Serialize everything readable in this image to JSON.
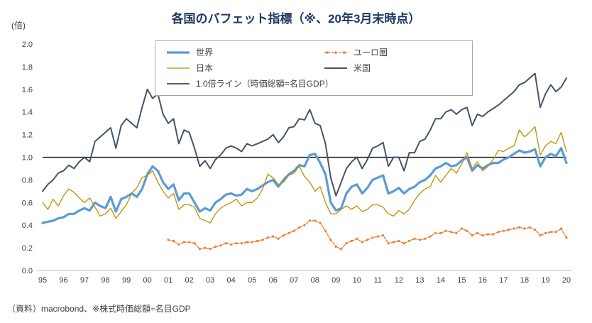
{
  "source_note": "（資料）macrobond、※株式時価総額÷名目GDP",
  "chart_data": {
    "type": "line",
    "title": "各国のバフェット指標（※、20年3月末時点）",
    "y_unit": "(倍)",
    "ylim": [
      0.0,
      2.0
    ],
    "ytick_step": 0.2,
    "x_tick_labels": [
      "95",
      "96",
      "97",
      "98",
      "99",
      "00",
      "01",
      "02",
      "03",
      "04",
      "05",
      "06",
      "07",
      "08",
      "09",
      "10",
      "11",
      "12",
      "13",
      "14",
      "15",
      "16",
      "17",
      "18",
      "19",
      "20"
    ],
    "points_per_year": 4,
    "x_range_note": "quarterly 1995Q1 - 2020Q1",
    "legend_position": "top-inside-box",
    "grid": false,
    "reference_line": {
      "value": 1.0,
      "label": "1.0倍ライン（時価総額=名目GDP）",
      "color": "#000000"
    },
    "series": [
      {
        "name": "世界",
        "color": "#5B9BD5",
        "width": 3.2,
        "dash": "",
        "markers": false,
        "values": [
          0.42,
          0.43,
          0.44,
          0.46,
          0.47,
          0.5,
          0.5,
          0.53,
          0.55,
          0.53,
          0.6,
          0.57,
          0.55,
          0.65,
          0.52,
          0.63,
          0.65,
          0.68,
          0.65,
          0.72,
          0.85,
          0.92,
          0.88,
          0.78,
          0.72,
          0.76,
          0.62,
          0.68,
          0.68,
          0.6,
          0.52,
          0.55,
          0.53,
          0.6,
          0.63,
          0.67,
          0.68,
          0.66,
          0.67,
          0.72,
          0.7,
          0.72,
          0.75,
          0.78,
          0.8,
          0.74,
          0.8,
          0.85,
          0.88,
          0.93,
          0.92,
          1.02,
          1.03,
          0.95,
          0.85,
          0.6,
          0.53,
          0.55,
          0.68,
          0.74,
          0.76,
          0.68,
          0.73,
          0.8,
          0.82,
          0.84,
          0.68,
          0.7,
          0.73,
          0.68,
          0.72,
          0.74,
          0.78,
          0.8,
          0.84,
          0.9,
          0.92,
          0.95,
          0.92,
          0.93,
          0.97,
          1.0,
          0.88,
          0.93,
          0.9,
          0.93,
          0.95,
          0.95,
          0.98,
          1.0,
          1.03,
          1.06,
          1.04,
          1.05,
          1.07,
          0.92,
          1.0,
          1.03,
          1.01,
          1.08,
          0.95
        ]
      },
      {
        "name": "ユーロ圏",
        "color": "#ED7D31",
        "width": 1.4,
        "dash": "3 2",
        "markers": true,
        "values": [
          null,
          null,
          null,
          null,
          null,
          null,
          null,
          null,
          null,
          null,
          null,
          null,
          null,
          null,
          null,
          null,
          null,
          null,
          null,
          null,
          null,
          null,
          null,
          null,
          0.27,
          0.26,
          0.23,
          0.25,
          0.25,
          0.24,
          0.19,
          0.2,
          0.19,
          0.21,
          0.22,
          0.24,
          0.23,
          0.24,
          0.24,
          0.25,
          0.25,
          0.26,
          0.27,
          0.29,
          0.3,
          0.28,
          0.31,
          0.33,
          0.35,
          0.38,
          0.4,
          0.44,
          0.44,
          0.42,
          0.35,
          0.27,
          0.21,
          0.19,
          0.24,
          0.26,
          0.28,
          0.25,
          0.27,
          0.29,
          0.3,
          0.31,
          0.24,
          0.25,
          0.26,
          0.24,
          0.26,
          0.28,
          0.27,
          0.28,
          0.3,
          0.33,
          0.33,
          0.35,
          0.34,
          0.33,
          0.37,
          0.35,
          0.31,
          0.33,
          0.31,
          0.32,
          0.32,
          0.34,
          0.35,
          0.36,
          0.37,
          0.38,
          0.37,
          0.38,
          0.36,
          0.31,
          0.33,
          0.34,
          0.34,
          0.37,
          0.29
        ]
      },
      {
        "name": "日本",
        "color": "#BF8F00",
        "width": 1.3,
        "dash": "",
        "markers": false,
        "values": [
          0.6,
          0.54,
          0.63,
          0.57,
          0.66,
          0.72,
          0.69,
          0.64,
          0.6,
          0.64,
          0.56,
          0.48,
          0.5,
          0.55,
          0.46,
          0.52,
          0.58,
          0.68,
          0.73,
          0.82,
          0.84,
          0.88,
          0.78,
          0.7,
          0.64,
          0.68,
          0.54,
          0.58,
          0.58,
          0.56,
          0.46,
          0.44,
          0.42,
          0.5,
          0.55,
          0.58,
          0.6,
          0.63,
          0.57,
          0.6,
          0.6,
          0.64,
          0.72,
          0.85,
          0.82,
          0.76,
          0.78,
          0.84,
          0.86,
          0.92,
          0.83,
          0.78,
          0.7,
          0.74,
          0.6,
          0.5,
          0.5,
          0.54,
          0.57,
          0.54,
          0.57,
          0.52,
          0.54,
          0.58,
          0.58,
          0.56,
          0.5,
          0.48,
          0.53,
          0.5,
          0.54,
          0.62,
          0.68,
          0.72,
          0.74,
          0.84,
          0.78,
          0.84,
          0.9,
          0.86,
          0.94,
          1.04,
          0.9,
          0.96,
          0.88,
          0.92,
          0.98,
          1.06,
          1.05,
          1.08,
          1.1,
          1.24,
          1.18,
          1.22,
          1.27,
          1.02,
          1.1,
          1.14,
          1.12,
          1.22,
          1.05
        ]
      },
      {
        "name": "米国",
        "color": "#44546A",
        "width": 2.0,
        "dash": "",
        "markers": false,
        "values": [
          0.7,
          0.76,
          0.8,
          0.86,
          0.88,
          0.93,
          0.9,
          0.96,
          1.0,
          0.96,
          1.14,
          1.18,
          1.22,
          1.26,
          1.08,
          1.28,
          1.34,
          1.3,
          1.26,
          1.44,
          1.6,
          1.52,
          1.56,
          1.38,
          1.3,
          1.34,
          1.12,
          1.24,
          1.22,
          1.08,
          0.92,
          0.97,
          0.9,
          0.98,
          1.02,
          1.08,
          1.1,
          1.08,
          1.05,
          1.12,
          1.1,
          1.12,
          1.14,
          1.16,
          1.2,
          1.13,
          1.18,
          1.26,
          1.27,
          1.34,
          1.33,
          1.42,
          1.3,
          1.28,
          1.12,
          0.82,
          0.66,
          0.78,
          0.9,
          0.96,
          1.0,
          0.9,
          0.98,
          1.08,
          1.1,
          1.13,
          0.92,
          1.0,
          1.0,
          0.88,
          1.04,
          1.04,
          1.14,
          1.16,
          1.24,
          1.34,
          1.34,
          1.4,
          1.42,
          1.38,
          1.42,
          1.44,
          1.28,
          1.38,
          1.36,
          1.4,
          1.43,
          1.46,
          1.5,
          1.54,
          1.58,
          1.64,
          1.66,
          1.7,
          1.74,
          1.44,
          1.56,
          1.64,
          1.58,
          1.62,
          1.7
        ]
      }
    ]
  }
}
